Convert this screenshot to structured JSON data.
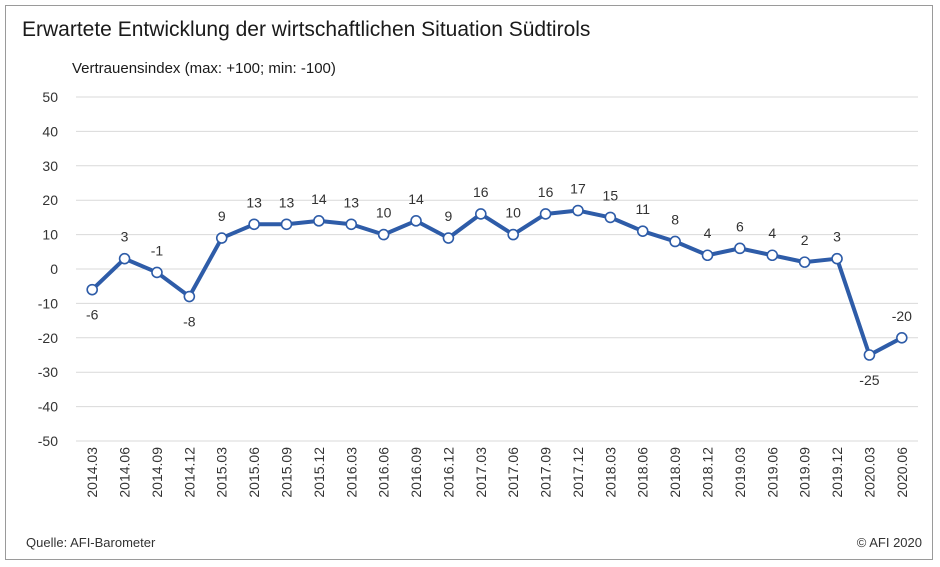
{
  "chart_data": {
    "type": "line",
    "title": "Erwartete Entwicklung der wirtschaftlichen Situation Südtirols",
    "ylabel": "Vertrauensindex (max: +100; min: -100)",
    "xlabel": "",
    "ylim": [
      -50,
      50
    ],
    "yticks": [
      50,
      40,
      30,
      20,
      10,
      0,
      -10,
      -20,
      -30,
      -40,
      -50
    ],
    "grid": true,
    "legend": "none",
    "categories": [
      "2014.03",
      "2014.06",
      "2014.09",
      "2014.12",
      "2015.03",
      "2015.06",
      "2015.09",
      "2015.12",
      "2016.03",
      "2016.06",
      "2016.09",
      "2016.12",
      "2017.03",
      "2017.06",
      "2017.09",
      "2017.12",
      "2018.03",
      "2018.06",
      "2018.09",
      "2018.12",
      "2019.03",
      "2019.06",
      "2019.09",
      "2019.12",
      "2020.03",
      "2020.06"
    ],
    "values": [
      -6,
      3,
      -1,
      -8,
      9,
      13,
      13,
      14,
      13,
      10,
      14,
      9,
      16,
      10,
      16,
      17,
      15,
      11,
      8,
      4,
      6,
      4,
      2,
      3,
      -25,
      -20
    ],
    "data_labels": [
      "-6",
      "3",
      "-1",
      "-8",
      "9",
      "13",
      "13",
      "14",
      "13",
      "10",
      "14",
      "9",
      "16",
      "10",
      "16",
      "17",
      "15",
      "11",
      "8",
      "4",
      "6",
      "4",
      "2",
      "3",
      "-25",
      "-20"
    ],
    "line_color": "#2e5ca8",
    "marker_fill": "#ffffff"
  },
  "footer": {
    "source": "Quelle: AFI-Barometer",
    "copyright": "© AFI 2020"
  }
}
